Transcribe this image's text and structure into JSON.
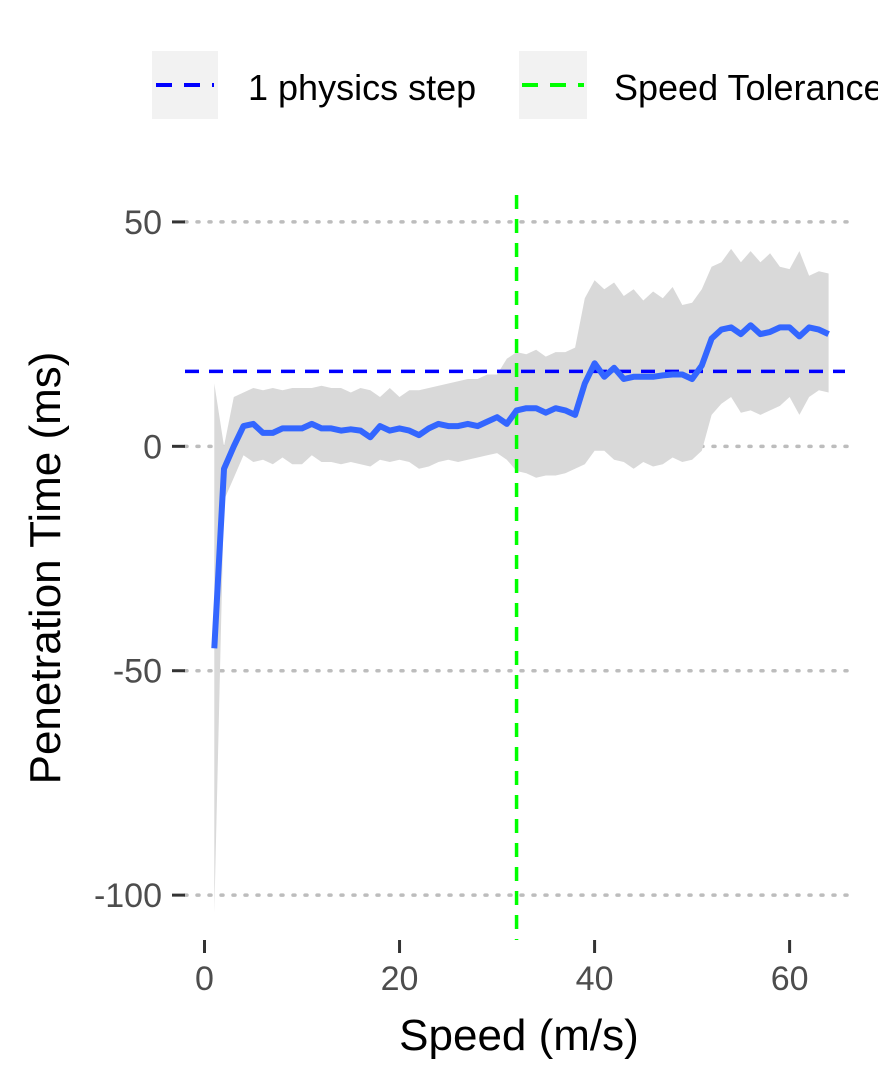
{
  "chart_data": {
    "type": "line",
    "title": "",
    "xlabel": "Speed (m/s)",
    "ylabel": "Penetration Time (ms)",
    "xlim": [
      -2,
      66.5
    ],
    "ylim": [
      -110,
      56
    ],
    "x_ticks": [
      0,
      20,
      40,
      60
    ],
    "x_tick_labels": [
      "0",
      "20",
      "40",
      "60"
    ],
    "y_ticks": [
      -100,
      -50,
      0,
      50
    ],
    "y_tick_labels": [
      "-100",
      "-50",
      "0",
      "50"
    ],
    "grid": "horizontal dotted",
    "legend_position": "top",
    "legend": [
      {
        "label": "1 physics step",
        "color": "#0000ff",
        "style": "dashed"
      },
      {
        "label": "Speed Tolerance",
        "color": "#00ff00",
        "style": "dashed"
      }
    ],
    "reference_lines": [
      {
        "orientation": "horizontal",
        "value": 16.7,
        "color": "#0000ff",
        "legend": "1 physics step"
      },
      {
        "orientation": "vertical",
        "value": 32,
        "color": "#00ff00",
        "legend": "Speed Tolerance"
      }
    ],
    "series": [
      {
        "color": "#3366ff",
        "band_color": "#d9d9d9",
        "x": [
          1,
          2,
          3,
          4,
          5,
          6,
          7,
          8,
          9,
          10,
          11,
          12,
          13,
          14,
          15,
          16,
          17,
          18,
          19,
          20,
          21,
          22,
          23,
          24,
          25,
          26,
          27,
          28,
          29,
          30,
          31,
          32,
          33,
          34,
          35,
          36,
          37,
          38,
          39,
          40,
          41,
          42,
          43,
          44,
          45,
          46,
          47,
          48,
          49,
          50,
          51,
          52,
          53,
          54,
          55,
          56,
          57,
          58,
          59,
          60,
          61,
          62,
          63,
          64
        ],
        "y": [
          -45,
          -5,
          0,
          4.5,
          5,
          3,
          3,
          4,
          4,
          4,
          5,
          4,
          4,
          3.5,
          3.8,
          3.5,
          2,
          4.5,
          3.5,
          4,
          3.5,
          2.5,
          4,
          5,
          4.5,
          4.5,
          5,
          4.5,
          5.5,
          6.5,
          5,
          8,
          8.5,
          8.5,
          7.5,
          8.5,
          8,
          7,
          14,
          18.5,
          15.5,
          17.5,
          15,
          15.5,
          15.5,
          15.5,
          15.8,
          16,
          16,
          15,
          18,
          24,
          26,
          26.5,
          25,
          27,
          25,
          25.5,
          26.5,
          26.5,
          24.5,
          26.5,
          26,
          25
        ],
        "upper": [
          14,
          0,
          11,
          12,
          13,
          12.5,
          13,
          12.5,
          13,
          13,
          13,
          13.5,
          13,
          13,
          12,
          13,
          12.5,
          11,
          13,
          11,
          12.5,
          12.5,
          13,
          13.5,
          14,
          14.5,
          15,
          15,
          16,
          16,
          19.5,
          21,
          20.5,
          21.5,
          20,
          21,
          21,
          22,
          33,
          37,
          35,
          36.5,
          33.5,
          35,
          32.5,
          34.5,
          33,
          35.5,
          31.5,
          32,
          35,
          40,
          41,
          44,
          41,
          43.5,
          41,
          43,
          40,
          39.5,
          43.5,
          38,
          39,
          38.5
        ],
        "lower": [
          -104,
          -12,
          -7,
          -2,
          -3.5,
          -3,
          -4,
          -2.5,
          -4,
          -4,
          -2,
          -3.5,
          -3.5,
          -4,
          -3.5,
          -4,
          -4.5,
          -3,
          -3.5,
          -3,
          -3.5,
          -5,
          -4.5,
          -3.5,
          -3,
          -3.5,
          -3,
          -2.5,
          -2,
          -1.5,
          -3,
          -5.5,
          -6,
          -7,
          -6.5,
          -6.5,
          -6,
          -5,
          -4,
          -1,
          -1,
          -3,
          -3.5,
          -5,
          -3.5,
          -4.5,
          -4,
          -2.5,
          -3.5,
          -3,
          -1,
          7,
          9.5,
          11,
          7.5,
          8,
          7,
          8,
          9,
          11,
          7,
          11,
          12.5,
          12
        ]
      }
    ]
  }
}
